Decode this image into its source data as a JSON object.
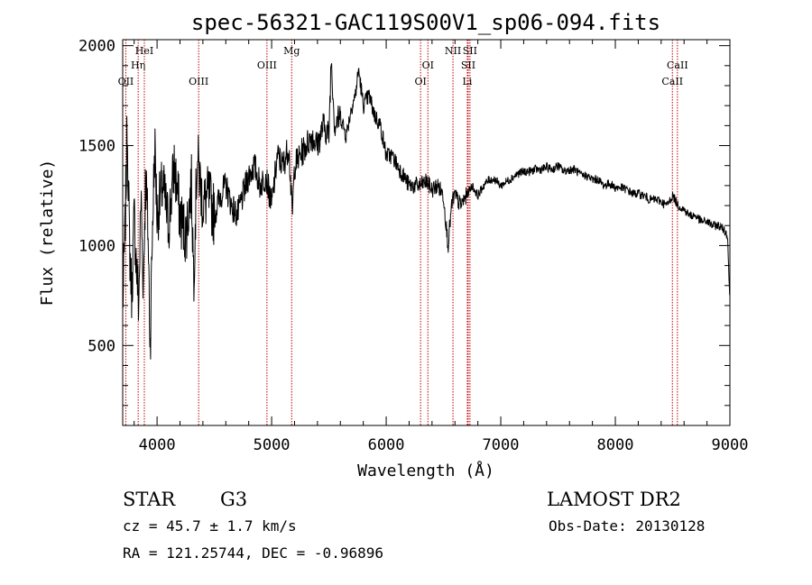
{
  "chart_data": {
    "type": "line",
    "title": "spec-56321-GAC119S00V1_sp06-094.fits",
    "xlabel": "Wavelength (Å)",
    "ylabel": "Flux (relative)",
    "xlim": [
      3700,
      9000
    ],
    "ylim": [
      100,
      2030
    ],
    "x_ticks": [
      4000,
      5000,
      6000,
      7000,
      8000,
      9000
    ],
    "y_ticks": [
      500,
      1000,
      1500,
      2000
    ],
    "grid": false,
    "series": [
      {
        "x": [
          3700,
          3720,
          3740,
          3760,
          3780,
          3800,
          3820,
          3840,
          3860,
          3880,
          3900,
          3920,
          3940,
          3960,
          3980,
          4000,
          4050,
          4100,
          4150,
          4200,
          4250,
          4300,
          4320,
          4350,
          4400,
          4450,
          4500,
          4550,
          4600,
          4650,
          4700,
          4750,
          4800,
          4850,
          4900,
          4950,
          5000,
          5050,
          5100,
          5150,
          5180,
          5200,
          5250,
          5300,
          5350,
          5400,
          5450,
          5500,
          5520,
          5550,
          5600,
          5650,
          5700,
          5730,
          5760,
          5800,
          5850,
          5900,
          5950,
          6000,
          6050,
          6100,
          6150,
          6200,
          6250,
          6300,
          6350,
          6400,
          6450,
          6500,
          6540,
          6563,
          6580,
          6600,
          6650,
          6700,
          6750,
          6800,
          6850,
          6900,
          6950,
          7000,
          7050,
          7100,
          7150,
          7200,
          7250,
          7300,
          7350,
          7400,
          7450,
          7500,
          7550,
          7600,
          7650,
          7700,
          7750,
          7800,
          7850,
          7900,
          7950,
          8000,
          8050,
          8100,
          8150,
          8200,
          8250,
          8300,
          8350,
          8400,
          8450,
          8500,
          8550,
          8600,
          8650,
          8700,
          8750,
          8800,
          8850,
          8900,
          8950,
          8980,
          9000
        ],
        "values": [
          700,
          1050,
          1600,
          1000,
          750,
          1150,
          900,
          700,
          1250,
          800,
          1350,
          1100,
          500,
          1100,
          1500,
          1150,
          1300,
          1100,
          1400,
          1150,
          1050,
          1300,
          850,
          1450,
          1200,
          1250,
          1150,
          1250,
          1300,
          1200,
          1150,
          1250,
          1350,
          1400,
          1300,
          1350,
          1200,
          1450,
          1400,
          1500,
          1150,
          1400,
          1450,
          1500,
          1550,
          1500,
          1600,
          1550,
          1950,
          1600,
          1650,
          1550,
          1700,
          1750,
          1880,
          1700,
          1750,
          1650,
          1600,
          1450,
          1450,
          1400,
          1350,
          1300,
          1300,
          1300,
          1320,
          1280,
          1300,
          1250,
          1000,
          1150,
          1230,
          1250,
          1200,
          1250,
          1300,
          1250,
          1300,
          1330,
          1330,
          1300,
          1320,
          1340,
          1360,
          1370,
          1370,
          1380,
          1380,
          1390,
          1380,
          1400,
          1370,
          1380,
          1380,
          1350,
          1350,
          1330,
          1330,
          1300,
          1310,
          1290,
          1290,
          1280,
          1260,
          1260,
          1250,
          1230,
          1230,
          1220,
          1200,
          1250,
          1200,
          1180,
          1150,
          1150,
          1120,
          1120,
          1100,
          1100,
          1080,
          1050,
          700
        ]
      }
    ],
    "lines": [
      {
        "wave": 3727,
        "label": "OII",
        "row": 3
      },
      {
        "wave": 3835,
        "label": "Hη",
        "row": 2
      },
      {
        "wave": 3889,
        "label": "HeI",
        "row": 1
      },
      {
        "wave": 4363,
        "label": "OIII",
        "row": 3
      },
      {
        "wave": 4959,
        "label": "OIII",
        "row": 2
      },
      {
        "wave": 5175,
        "label": "Mg",
        "row": 1
      },
      {
        "wave": 6300,
        "label": "OI",
        "row": 3
      },
      {
        "wave": 6364,
        "label": "OI",
        "row": 2
      },
      {
        "wave": 6583,
        "label": "NII",
        "row": 1
      },
      {
        "wave": 6708,
        "label": "Li",
        "row": 3
      },
      {
        "wave": 6716,
        "label": "SII",
        "row": 2
      },
      {
        "wave": 6731,
        "label": "SII",
        "row": 1
      },
      {
        "wave": 8498,
        "label": "CaII",
        "row": 3
      },
      {
        "wave": 8542,
        "label": "CaII",
        "row": 2
      }
    ]
  },
  "info": {
    "class": "STAR",
    "subclass": "G3",
    "survey": "LAMOST DR2",
    "cz": "cz = 45.7 ± 1.7 km/s",
    "obs_date": "Obs-Date: 20130128",
    "radec": "RA = 121.25744, DEC =  -0.96896"
  },
  "colors": {
    "spectrum": "#000000",
    "line_marker": "#c00000",
    "axes": "#000000"
  }
}
